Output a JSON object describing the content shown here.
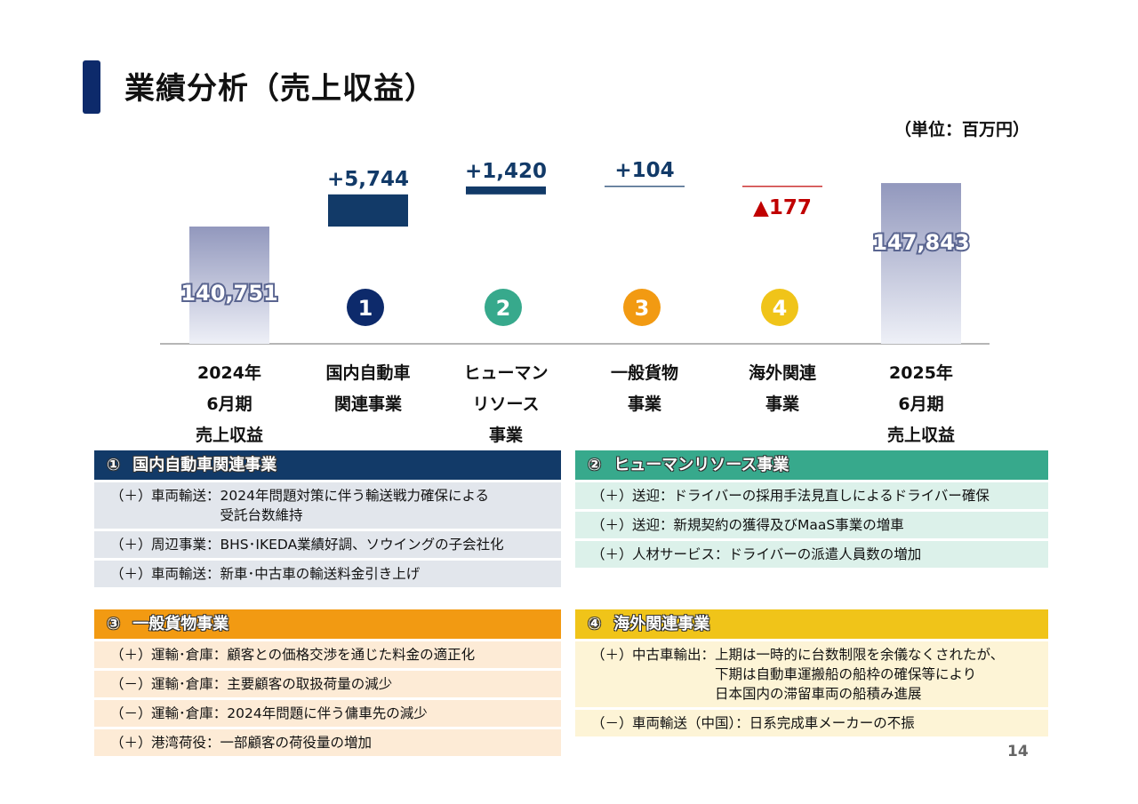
{
  "title": "業績分析（売上収益）",
  "unit": "（単位：百万円）",
  "page_number": "14",
  "colors": {
    "navy": "#123a68",
    "teal": "#37a98c",
    "orange": "#f29a12",
    "gold": "#f0c419",
    "neg_red": "#c00000",
    "base_bar": "#a9aecb"
  },
  "chart_data": {
    "type": "bar",
    "subtype": "waterfall",
    "categories": [
      [
        "2024年",
        "6月期",
        "売上収益"
      ],
      [
        "国内自動車",
        "関連事業"
      ],
      [
        "ヒューマン",
        "リソース",
        "事業"
      ],
      [
        "一般貨物",
        "事業"
      ],
      [
        "海外関連",
        "事業"
      ],
      [
        "2025年",
        "6月期",
        "売上収益"
      ]
    ],
    "values": [
      140751,
      5744,
      1420,
      104,
      -177,
      147843
    ],
    "kinds": [
      "total",
      "delta",
      "delta",
      "delta",
      "delta",
      "total"
    ],
    "value_labels": [
      "140,751",
      "+5,744",
      "+1,420",
      "+104",
      "▲177",
      "147,843"
    ],
    "badges": [
      "",
      "1",
      "2",
      "3",
      "4",
      ""
    ],
    "badge_colors": [
      "",
      "#0d2a6b",
      "#37a98c",
      "#f29a12",
      "#f0c419",
      ""
    ],
    "delta_colors": [
      "",
      "#123a68",
      "#123a68",
      "#123a68",
      "#c00000",
      ""
    ]
  },
  "panels": [
    {
      "num": "①",
      "title": "国内自動車関連事業",
      "head_color": "#123a68",
      "row_color": "#e2e6ec",
      "rows": [
        {
          "sign": "（＋）",
          "text": "車両輸送：2024年問題対策に伴う輸送戦力確保による\n　　　　　受託台数維持"
        },
        {
          "sign": "（＋）",
          "text": "周辺事業：BHS･IKEDA業績好調、ソウイングの子会社化"
        },
        {
          "sign": "（＋）",
          "text": "車両輸送：新車･中古車の輸送料金引き上げ"
        }
      ]
    },
    {
      "num": "②",
      "title": "ヒューマンリソース事業",
      "head_color": "#37a98c",
      "row_color": "#dcf1ea",
      "rows": [
        {
          "sign": "（＋）",
          "text": "送迎：ドライバーの採用手法見直しによるドライバー確保"
        },
        {
          "sign": "（＋）",
          "text": "送迎：新規契約の獲得及びMaaS事業の増車"
        },
        {
          "sign": "（＋）",
          "text": "人材サービス：ドライバーの派遣人員数の増加"
        }
      ]
    },
    {
      "num": "③",
      "title": "一般貨物事業",
      "head_color": "#f29a12",
      "row_color": "#fdebd6",
      "rows": [
        {
          "sign": "（＋）",
          "text": "運輸･倉庫：顧客との価格交渉を通じた料金の適正化"
        },
        {
          "sign": "（－）",
          "text": "運輸･倉庫：主要顧客の取扱荷量の減少"
        },
        {
          "sign": "（－）",
          "text": "運輸･倉庫：2024年問題に伴う傭車先の減少"
        },
        {
          "sign": "（＋）",
          "text": "港湾荷役：一部顧客の荷役量の増加"
        }
      ]
    },
    {
      "num": "④",
      "title": "海外関連事業",
      "head_color": "#f0c419",
      "row_color": "#fdf4d6",
      "rows": [
        {
          "sign": "（＋）",
          "text": "中古車輸出：上期は一時的に台数制限を余儀なくされたが、\n　　　　　　下期は自動車運搬船の船枠の確保等により\n　　　　　　日本国内の滞留車両の船積み進展"
        },
        {
          "sign": "（－）",
          "text": "車両輸送（中国）：日系完成車メーカーの不振"
        }
      ]
    }
  ]
}
